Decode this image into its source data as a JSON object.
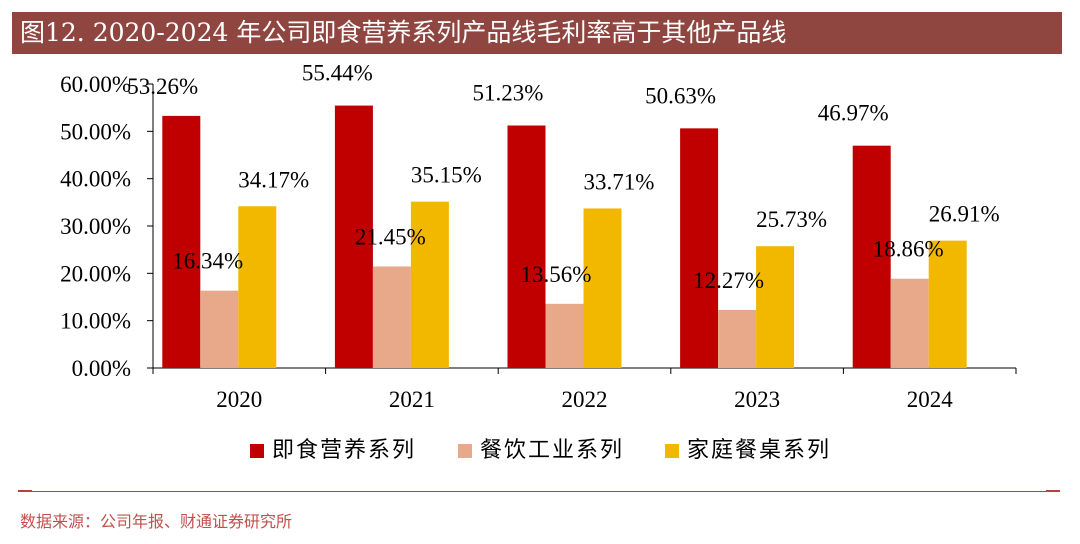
{
  "title": "图12. 2020-2024 年公司即食营养系列产品线毛利率高于其他产品线",
  "source": "数据来源：公司年报、财通证券研究所",
  "chart_data": {
    "type": "bar",
    "categories": [
      "2020",
      "2021",
      "2022",
      "2023",
      "2024"
    ],
    "series": [
      {
        "name": "即食营养系列",
        "color": "#c00000",
        "values": [
          53.26,
          55.44,
          51.23,
          50.63,
          46.97
        ],
        "labels": [
          "53.26%",
          "55.44%",
          "51.23%",
          "50.63%",
          "46.97%"
        ]
      },
      {
        "name": "餐饮工业系列",
        "color": "#e8a98a",
        "values": [
          16.34,
          21.45,
          13.56,
          12.27,
          18.86
        ],
        "labels": [
          "16.34%",
          "21.45%",
          "13.56%",
          "12.27%",
          "18.86%"
        ]
      },
      {
        "name": "家庭餐桌系列",
        "color": "#f2b800",
        "values": [
          34.17,
          35.15,
          33.71,
          25.73,
          26.91
        ],
        "labels": [
          "34.17%",
          "35.15%",
          "33.71%",
          "25.73%",
          "26.91%"
        ]
      }
    ],
    "ylim": [
      0,
      60
    ],
    "yticks": [
      0,
      10,
      20,
      30,
      40,
      50,
      60
    ],
    "ytick_labels": [
      "0.00%",
      "10.00%",
      "20.00%",
      "30.00%",
      "40.00%",
      "50.00%",
      "60.00%"
    ],
    "legend_position": "bottom",
    "grid": false
  }
}
